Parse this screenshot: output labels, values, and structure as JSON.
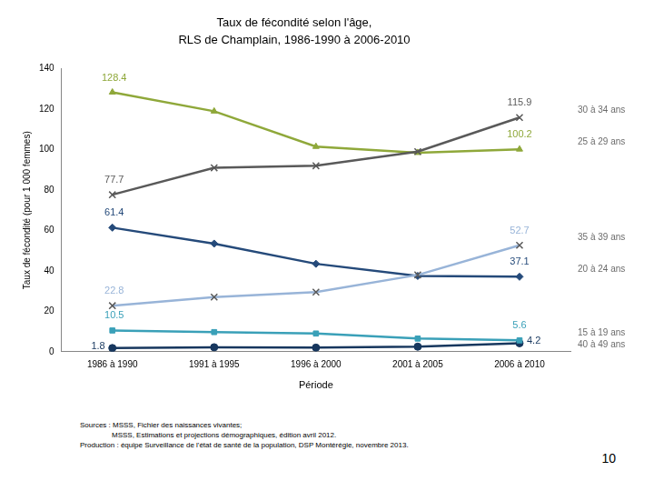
{
  "chart_data": {
    "type": "line",
    "title": [
      "Taux de fécondité selon l'âge,",
      "RLS de Champlain, 1986-1990 à 2006-2010"
    ],
    "x_label": "Période",
    "y_label": "Taux de fécondité (pour 1 000 femmes)",
    "categories": [
      "1986 à 1990",
      "1991 à 1995",
      "1996 à 2000",
      "2001 à 2005",
      "2006 à 2010"
    ],
    "series": [
      {
        "name": "30 à 34 ans",
        "color": "#595959",
        "marker": "x",
        "values": [
          77.7,
          91,
          92,
          99,
          115.9
        ],
        "value_labels": [
          "77.7",
          null,
          null,
          null,
          "115.9"
        ]
      },
      {
        "name": "25 à 29 ans",
        "color": "#8fa83a",
        "marker": "triangle",
        "values": [
          128.4,
          119,
          101.5,
          98.5,
          100.2
        ],
        "value_labels": [
          "128.4",
          null,
          null,
          null,
          "100.2"
        ]
      },
      {
        "name": "35 à 39 ans",
        "color": "#98b4d8",
        "marker": "x",
        "values": [
          22.8,
          27,
          29.5,
          38,
          52.7
        ],
        "value_labels": [
          "22.8",
          null,
          null,
          null,
          "52.7"
        ]
      },
      {
        "name": "20 à 24 ans",
        "color": "#254a7a",
        "marker": "diamond",
        "values": [
          61.4,
          53.5,
          43.5,
          37.5,
          37.1
        ],
        "value_labels": [
          "61.4",
          null,
          null,
          null,
          "37.1"
        ]
      },
      {
        "name": "15 à 19 ans",
        "color": "#3aa0b8",
        "marker": "square",
        "values": [
          10.5,
          9.7,
          9,
          6.5,
          5.6
        ],
        "value_labels": [
          "10.5",
          null,
          null,
          null,
          "5.6"
        ]
      },
      {
        "name": "40 à 49 ans",
        "color": "#17375e",
        "marker": "circle",
        "values": [
          1.8,
          2.2,
          2.0,
          2.5,
          4.2
        ],
        "value_labels": [
          "1.8",
          null,
          null,
          null,
          "4.2"
        ]
      }
    ],
    "ylim": [
      0,
      140
    ],
    "yticks": [
      0,
      20,
      40,
      60,
      80,
      100,
      120,
      140
    ],
    "grid": false,
    "source": [
      "Sources : MSSS, Fichier des naissances vivantes;",
      "MSSS, Estimations et projections démographiques, édition avril 2012.",
      "Production : équipe Surveillance de l'état de santé de la population, DSP Montérégie, novembre 2013."
    ],
    "page_number": "10"
  }
}
